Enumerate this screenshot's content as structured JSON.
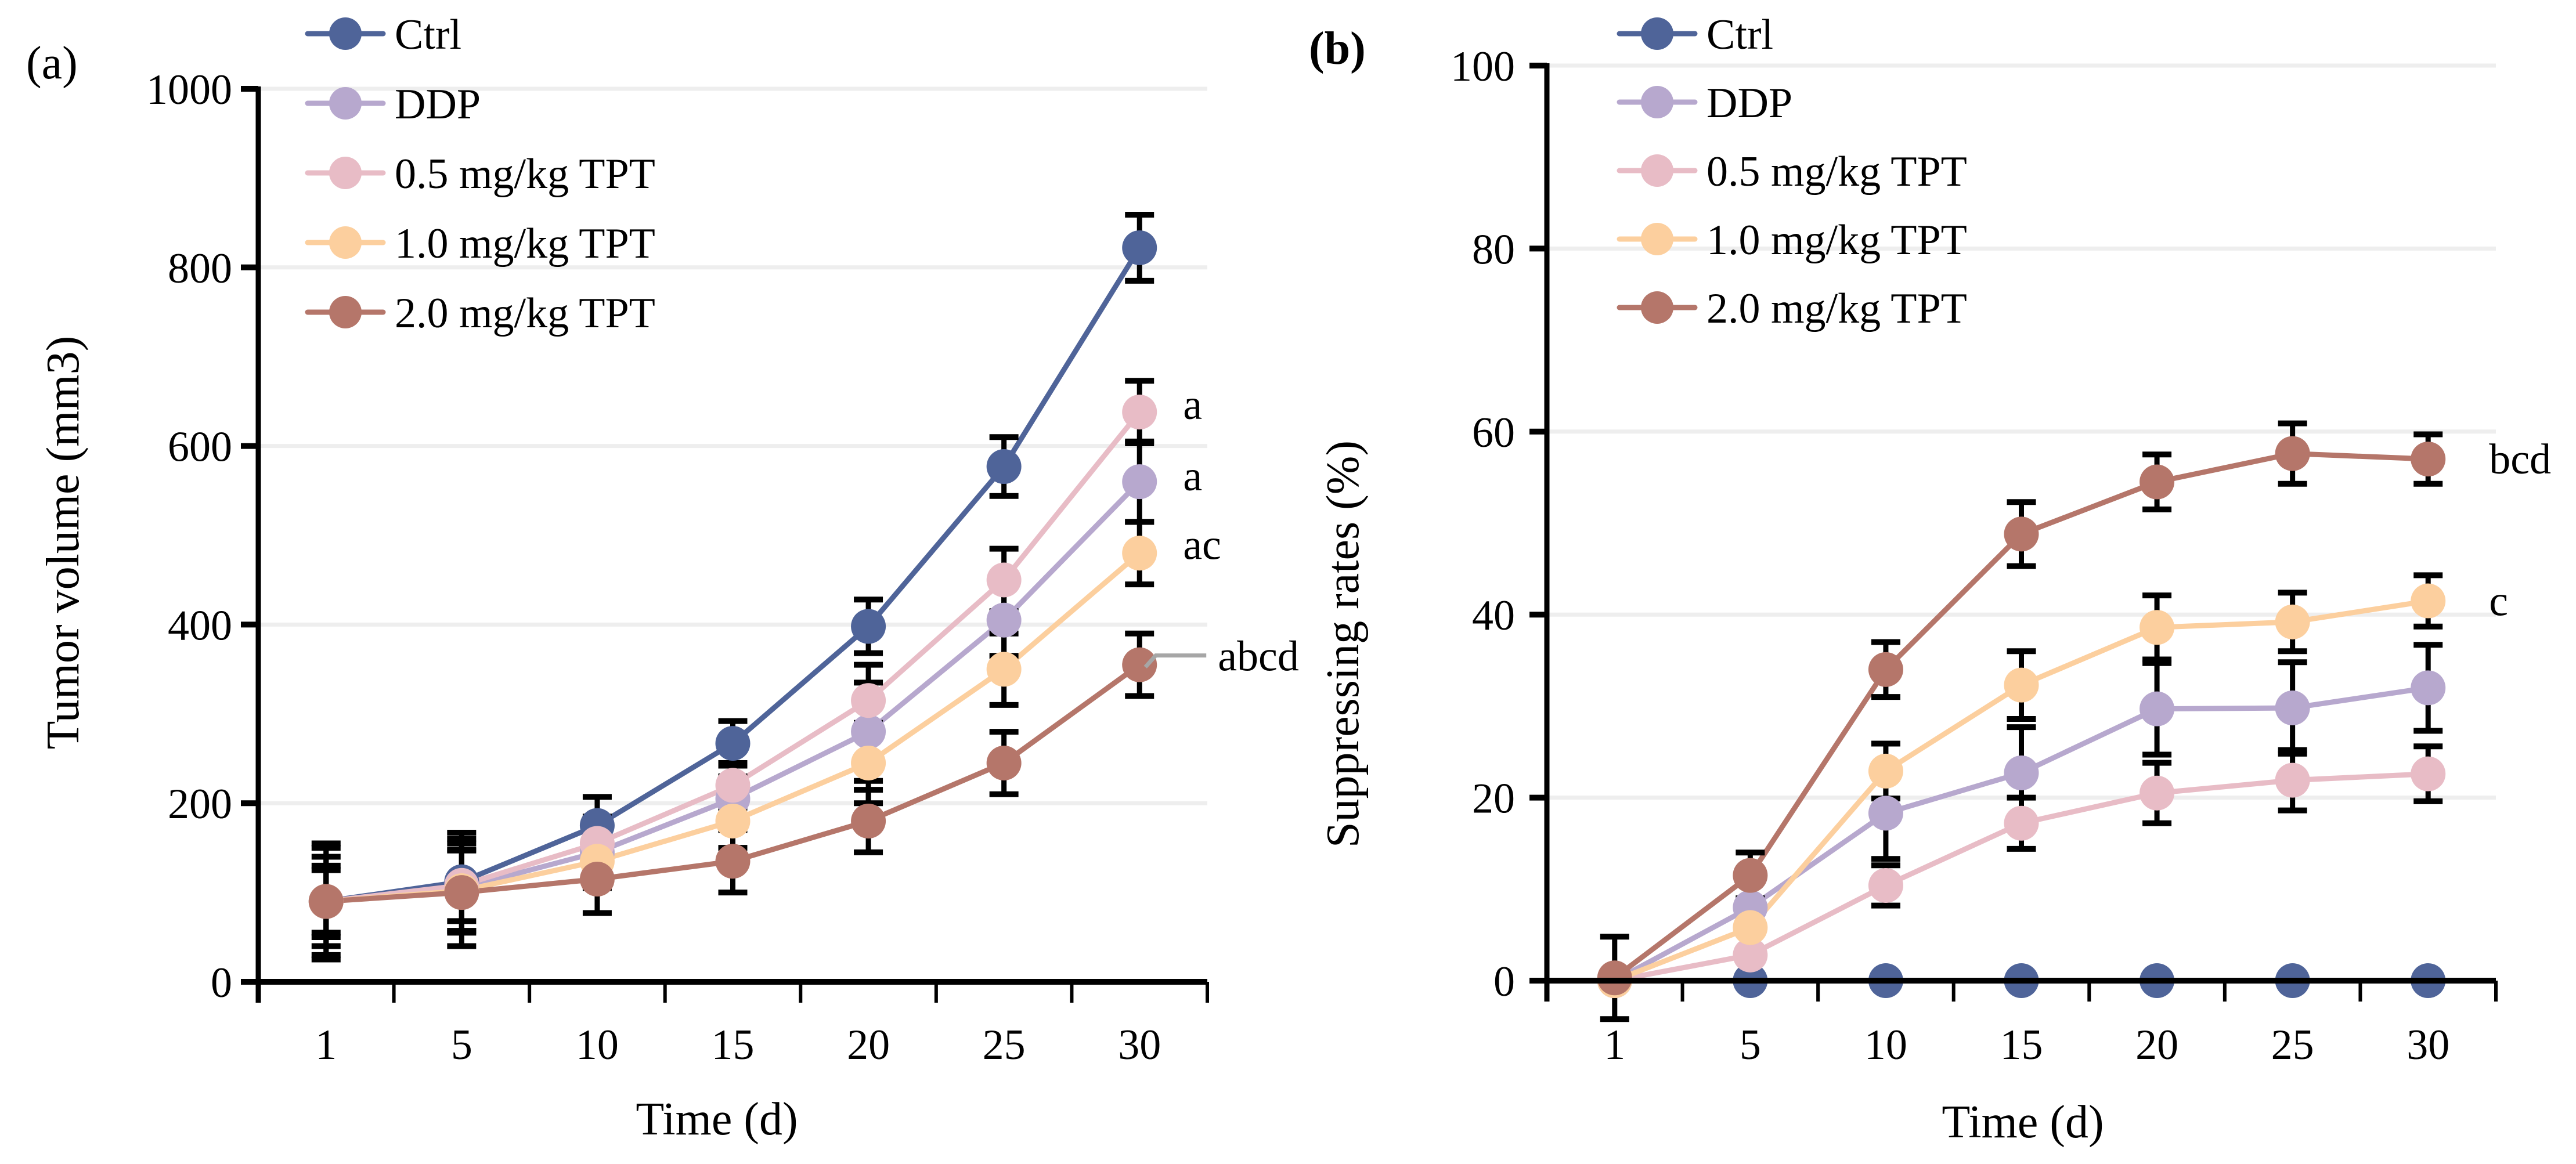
{
  "chart_data": [
    {
      "panel": "(a)",
      "type": "line",
      "title": "",
      "xlabel": "Time (d)",
      "ylabel": "Tumor volume (mm3)",
      "categories": [
        "1",
        "5",
        "10",
        "15",
        "20",
        "25",
        "30"
      ],
      "ylim": [
        0,
        1000
      ],
      "yticks": [
        0,
        200,
        400,
        600,
        800,
        1000
      ],
      "grid": true,
      "legend_position": "top-left",
      "series": [
        {
          "name": "Ctrl",
          "color": "#4F6499",
          "values": [
            90,
            112,
            175,
            267,
            398,
            577,
            822
          ],
          "errors": [
            65,
            55,
            32,
            25,
            30,
            33,
            37
          ]
        },
        {
          "name": "DDP",
          "color": "#B7A8CE",
          "values": [
            90,
            105,
            145,
            205,
            280,
            405,
            560
          ],
          "errors": [
            40,
            50,
            30,
            25,
            55,
            40,
            45
          ]
        },
        {
          "name": "0.5 mg/kg TPT",
          "color": "#E8BCC6",
          "values": [
            90,
            108,
            155,
            220,
            315,
            450,
            638
          ],
          "errors": [
            35,
            40,
            30,
            25,
            40,
            35,
            35
          ]
        },
        {
          "name": "1.0 mg/kg TPT",
          "color": "#FCCF9E",
          "values": [
            90,
            102,
            135,
            180,
            245,
            350,
            480
          ],
          "errors": [
            50,
            45,
            30,
            30,
            45,
            40,
            35
          ]
        },
        {
          "name": "2.0 mg/kg TPT",
          "color": "#B5766A",
          "values": [
            90,
            100,
            115,
            135,
            180,
            245,
            355
          ],
          "errors": [
            60,
            60,
            38,
            35,
            35,
            35,
            35
          ]
        }
      ],
      "annotations": [
        {
          "series": "0.5 mg/kg TPT",
          "text": "a"
        },
        {
          "series": "DDP",
          "text": "a"
        },
        {
          "series": "1.0 mg/kg TPT",
          "text": "ac"
        },
        {
          "series": "2.0 mg/kg TPT",
          "text": "abcd"
        }
      ]
    },
    {
      "panel": "(b)",
      "type": "line",
      "title": "",
      "xlabel": "Time (d)",
      "ylabel": "Suppressing rates (%)",
      "categories": [
        "1",
        "5",
        "10",
        "15",
        "20",
        "25",
        "30"
      ],
      "ylim": [
        0,
        100
      ],
      "yticks": [
        0,
        20,
        40,
        60,
        80,
        100
      ],
      "grid": true,
      "legend_position": "top-left",
      "series": [
        {
          "name": "Ctrl",
          "color": "#4F6499",
          "values": [
            0,
            0,
            0,
            0,
            0,
            0,
            0
          ],
          "errors": [
            0,
            0,
            0,
            0,
            0,
            0,
            0
          ]
        },
        {
          "name": "DDP",
          "color": "#B7A8CE",
          "values": [
            0,
            8,
            18.3,
            22.7,
            29.7,
            29.8,
            32
          ],
          "errors": [
            0,
            0,
            5,
            5,
            5,
            5,
            4.7
          ]
        },
        {
          "name": "0.5 mg/kg TPT",
          "color": "#E8BCC6",
          "values": [
            0,
            2.8,
            10.4,
            17.2,
            20.5,
            21.9,
            22.6
          ],
          "errors": [
            0,
            0,
            2.2,
            2.8,
            3.3,
            3.3,
            3
          ]
        },
        {
          "name": "1.0 mg/kg TPT",
          "color": "#FCCF9E",
          "values": [
            0,
            5.8,
            22.9,
            32.3,
            38.6,
            39.2,
            41.5
          ],
          "errors": [
            0,
            0,
            3,
            3.7,
            3.5,
            3.2,
            2.8
          ]
        },
        {
          "name": "2.0 mg/kg TPT",
          "color": "#B5766A",
          "values": [
            0.3,
            11.5,
            34,
            48.8,
            54.5,
            57.6,
            57
          ],
          "errors": [
            4.5,
            2.5,
            3,
            3.5,
            3,
            3.3,
            2.7
          ]
        }
      ],
      "annotations": [
        {
          "series": "2.0 mg/kg TPT",
          "text": "bcd"
        },
        {
          "series": "1.0 mg/kg TPT",
          "text": "c"
        }
      ]
    }
  ]
}
